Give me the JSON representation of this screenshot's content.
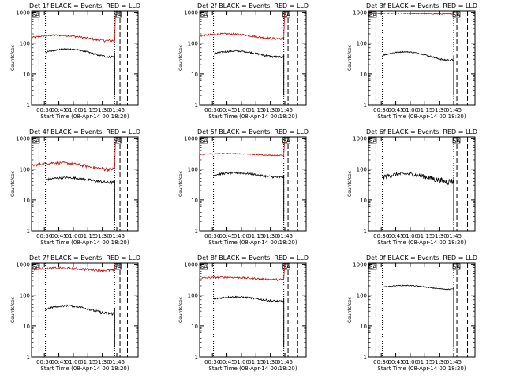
{
  "figure": {
    "ylabel": "Counts/sec",
    "ytick_labels": [
      "1",
      "10",
      "100",
      "1000"
    ],
    "xlabel": "Start Time (08-Apr-14 00:18:20)",
    "saa_label": "SA"
  },
  "colors": {
    "events": "#000000",
    "lld": "#cc0000"
  },
  "chart_data": [
    {
      "type": "line",
      "title": "Det 1f BLACK = Events, RED = LLD",
      "x_ticks": [
        "00:30",
        "00:45",
        "01:00",
        "01:15",
        "01:30",
        "01:45"
      ],
      "y_scale": "log",
      "ylim": [
        1,
        1100
      ],
      "events": {
        "start": 0.13,
        "end": 0.78,
        "level": 50,
        "bump": 14,
        "noise": 3
      },
      "lld": {
        "start": 0.0,
        "end": 0.78,
        "level": 150,
        "bump": 30,
        "noise": 12,
        "spike_left": 900,
        "spike_right": 900
      },
      "lines": {
        "dotted": [
          0.13,
          0.78
        ],
        "dashed": [
          0.07,
          0.83,
          0.9
        ],
        "solid_drop": 0.78
      }
    },
    {
      "type": "line",
      "title": "Det 2f BLACK = Events, RED = LLD",
      "x_ticks": [
        "00:30",
        "00:45",
        "01:00",
        "01:15",
        "01:30",
        "01:45"
      ],
      "y_scale": "log",
      "ylim": [
        1,
        1100
      ],
      "events": {
        "start": 0.13,
        "end": 0.79,
        "level": 45,
        "bump": 10,
        "noise": 3
      },
      "lld": {
        "start": 0.0,
        "end": 0.79,
        "level": 170,
        "bump": 30,
        "noise": 12,
        "spike_left": 900,
        "spike_right": 900
      },
      "lines": {
        "dotted": [
          0.13,
          0.79
        ],
        "dashed": [
          0.83,
          0.92
        ],
        "solid_drop": 0.79
      }
    },
    {
      "type": "line",
      "title": "Det 3f BLACK = Events, RED = LLD",
      "x_ticks": [
        "00:30",
        "00:45",
        "01:00",
        "01:15",
        "01:30",
        "01:45"
      ],
      "y_scale": "log",
      "ylim": [
        1,
        1100
      ],
      "events": {
        "start": 0.13,
        "end": 0.8,
        "level": 40,
        "bump": 12,
        "noise": 2
      },
      "lld": {
        "start": 0.0,
        "end": 0.8,
        "level": 900,
        "bump": 20,
        "noise": 30,
        "spike_left": 1000,
        "spike_right": 1000
      },
      "lines": {
        "dotted": [
          0.13,
          0.8
        ],
        "dashed": [
          0.07,
          0.83,
          0.93
        ],
        "solid_drop": 0.8
      }
    },
    {
      "type": "line",
      "title": "Det 4f BLACK = Events, RED = LLD",
      "x_ticks": [
        "00:30",
        "00:45",
        "01:00",
        "01:15",
        "01:30",
        "01:45"
      ],
      "y_scale": "log",
      "ylim": [
        1,
        1100
      ],
      "events": {
        "start": 0.13,
        "end": 0.78,
        "level": 45,
        "bump": 8,
        "noise": 4
      },
      "lld": {
        "start": 0.0,
        "end": 0.78,
        "level": 130,
        "bump": 30,
        "noise": 14,
        "spike_left": 900,
        "spike_right": 900
      },
      "lines": {
        "dotted": [
          0.13,
          0.78
        ],
        "dashed": [
          0.07,
          0.83,
          0.9
        ],
        "solid_drop": 0.78
      }
    },
    {
      "type": "line",
      "title": "Det 5f BLACK = Events, RED = LLD",
      "x_ticks": [
        "00:30",
        "00:45",
        "01:00",
        "01:15",
        "01:30",
        "01:45"
      ],
      "y_scale": "log",
      "ylim": [
        1,
        1100
      ],
      "events": {
        "start": 0.13,
        "end": 0.79,
        "level": 65,
        "bump": 10,
        "noise": 5
      },
      "lld": {
        "start": 0.0,
        "end": 0.79,
        "level": 300,
        "bump": 20,
        "noise": 10,
        "spike_left": 800,
        "spike_right": 800
      },
      "lines": {
        "dotted": [
          0.13,
          0.79
        ],
        "dashed": [
          0.83,
          0.92
        ],
        "solid_drop": 0.79
      }
    },
    {
      "type": "line",
      "title": "Det 6f BLACK = Events, RED = LLD",
      "x_ticks": [
        "00:30",
        "00:45",
        "01:00",
        "01:15",
        "01:30",
        "01:45"
      ],
      "y_scale": "log",
      "ylim": [
        1,
        1100
      ],
      "events": {
        "start": 0.13,
        "end": 0.8,
        "level": 55,
        "bump": 15,
        "noise": 10
      },
      "lld": null,
      "lines": {
        "dotted": [
          0.13,
          0.8
        ],
        "dashed": [
          0.07,
          0.83,
          0.93
        ],
        "solid_drop": 0.8
      }
    },
    {
      "type": "line",
      "title": "Det 7f BLACK = Events, RED = LLD",
      "x_ticks": [
        "00:30",
        "00:45",
        "01:00",
        "01:15",
        "01:30",
        "01:45"
      ],
      "y_scale": "log",
      "ylim": [
        1,
        1100
      ],
      "events": {
        "start": 0.13,
        "end": 0.78,
        "level": 35,
        "bump": 10,
        "noise": 3
      },
      "lld": {
        "start": 0.0,
        "end": 0.78,
        "level": 700,
        "bump": 60,
        "noise": 60,
        "spike_left": 1000,
        "spike_right": 1000
      },
      "lines": {
        "dotted": [
          0.13,
          0.78
        ],
        "dashed": [
          0.07,
          0.83,
          0.9
        ],
        "solid_drop": 0.78
      }
    },
    {
      "type": "line",
      "title": "Det 8f BLACK = Events, RED = LLD",
      "x_ticks": [
        "00:30",
        "00:45",
        "01:00",
        "01:15",
        "01:30",
        "01:45"
      ],
      "y_scale": "log",
      "ylim": [
        1,
        1100
      ],
      "events": {
        "start": 0.13,
        "end": 0.79,
        "level": 75,
        "bump": 12,
        "noise": 5
      },
      "lld": {
        "start": 0.0,
        "end": 0.79,
        "level": 350,
        "bump": 30,
        "noise": 25,
        "spike_left": 900,
        "spike_right": 900
      },
      "lines": {
        "dotted": [
          0.13,
          0.79
        ],
        "dashed": [
          0.83,
          0.92
        ],
        "solid_drop": 0.79
      }
    },
    {
      "type": "line",
      "title": "Det 9f BLACK = Events, RED = LLD",
      "x_ticks": [
        "00:30",
        "00:45",
        "01:00",
        "01:15",
        "01:30",
        "01:45"
      ],
      "y_scale": "log",
      "ylim": [
        1,
        1100
      ],
      "events": {
        "start": 0.13,
        "end": 0.8,
        "level": 180,
        "bump": 25,
        "noise": 6
      },
      "lld": null,
      "lines": {
        "dotted": [
          0.13,
          0.8
        ],
        "dashed": [
          0.07,
          0.83,
          0.93
        ],
        "solid_drop": 0.8
      }
    }
  ]
}
